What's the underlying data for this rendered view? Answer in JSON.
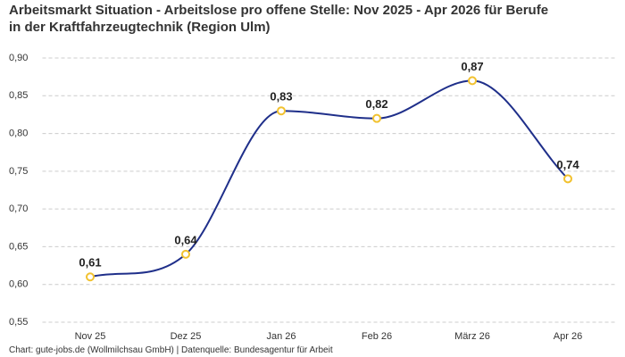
{
  "chart_data": {
    "type": "line",
    "title": "Arbeitsmarkt Situation - Arbeitslose pro offene Stelle: Nov 2025 - Apr 2026 für Berufe in der Kraftfahrzeugtechnik (Region Ulm)",
    "source": "Chart: gute-jobs.de (Wollmilchsau GmbH) | Datenquelle: Bundesagentur für Arbeit",
    "categories": [
      "Nov 25",
      "Dez 25",
      "Jan 26",
      "Feb 26",
      "März 26",
      "Apr 26"
    ],
    "series": [
      {
        "name": "Arbeitslose pro offene Stelle",
        "color": "#1f2f8a",
        "marker_color": "#f2c230",
        "values": [
          0.61,
          0.64,
          0.83,
          0.82,
          0.87,
          0.74
        ],
        "value_labels": [
          "0,61",
          "0,64",
          "0,83",
          "0,82",
          "0,87",
          "0,74"
        ]
      }
    ],
    "ylim": [
      0.55,
      0.9
    ],
    "yticks": [
      {
        "value": 0.55,
        "label": "0,55"
      },
      {
        "value": 0.6,
        "label": "0,60"
      },
      {
        "value": 0.65,
        "label": "0,65"
      },
      {
        "value": 0.7,
        "label": "0,70"
      },
      {
        "value": 0.75,
        "label": "0,75"
      },
      {
        "value": 0.8,
        "label": "0,80"
      },
      {
        "value": 0.85,
        "label": "0,85"
      },
      {
        "value": 0.9,
        "label": "0,90"
      }
    ],
    "grid": true,
    "legend": false
  }
}
